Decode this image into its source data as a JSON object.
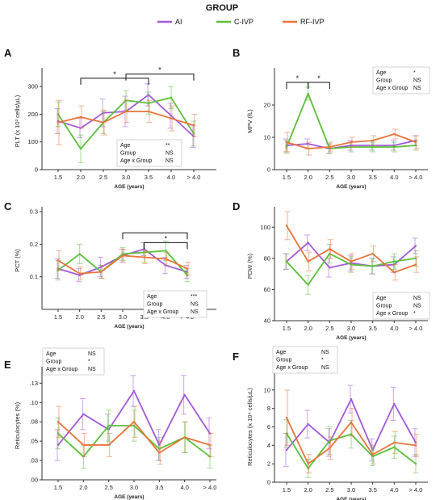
{
  "legend": {
    "title": "GROUP",
    "items": [
      {
        "name": "AI",
        "color": "#a259d9"
      },
      {
        "name": "C-IVP",
        "color": "#5cbf3a"
      },
      {
        "name": "RF-IVP",
        "color": "#e8743b"
      }
    ]
  },
  "chart_data": [
    {
      "panel": "A",
      "type": "line",
      "ylabel": "PLT (x 10³ cells/µL)",
      "xlabel": "AGE (years)",
      "categories": [
        "1.5",
        "2.0",
        "2.5",
        "3.0",
        "3.5",
        "4.0",
        "> 4.0"
      ],
      "ylim": [
        0,
        350
      ],
      "yticks": [
        0,
        100,
        200,
        300
      ],
      "yticklabels": [
        "0",
        "100",
        "200",
        "300"
      ],
      "series": [
        {
          "name": "AI",
          "values": [
            175,
            150,
            205,
            210,
            270,
            195,
            120
          ],
          "errors": [
            45,
            35,
            50,
            55,
            40,
            45,
            40
          ]
        },
        {
          "name": "C-IVP",
          "values": [
            200,
            75,
            170,
            250,
            240,
            260,
            130
          ],
          "errors": [
            45,
            50,
            40,
            35,
            40,
            40,
            45
          ]
        },
        {
          "name": "RF-IVP",
          "values": [
            170,
            190,
            170,
            210,
            210,
            185,
            160
          ],
          "errors": [
            80,
            40,
            45,
            40,
            40,
            45,
            40
          ]
        }
      ],
      "stats": [
        {
          "label": "Age",
          "value": "**"
        },
        {
          "label": "Group",
          "value": "NS"
        },
        {
          "label": "Age x Group",
          "value": "NS"
        }
      ],
      "sig_brackets": [
        {
          "x1": 1,
          "x2": 4,
          "y": 330,
          "label": "*"
        },
        {
          "x1": 3,
          "x2": 6,
          "y": 345,
          "label": "*"
        }
      ]
    },
    {
      "panel": "B",
      "type": "line",
      "ylabel": "MPV (fL)",
      "xlabel": "AGE (years)",
      "categories": [
        "1.5",
        "2.0",
        "2.5",
        "3.0",
        "3.5",
        "4.0",
        "> 4.0"
      ],
      "ylim": [
        0,
        30
      ],
      "yticks": [
        0,
        10,
        20
      ],
      "yticklabels": [
        "0",
        "10",
        "20"
      ],
      "series": [
        {
          "name": "AI",
          "values": [
            7.5,
            8,
            6.5,
            7.5,
            7.5,
            7.5,
            9
          ],
          "errors": [
            2,
            1.5,
            1.5,
            1.5,
            1.5,
            1.5,
            1.5
          ]
        },
        {
          "name": "C-IVP",
          "values": [
            7,
            23.5,
            6.5,
            7,
            7,
            7,
            7.5
          ],
          "errors": [
            2,
            2,
            1.5,
            1.5,
            1.5,
            1.5,
            1.5
          ]
        },
        {
          "name": "RF-IVP",
          "values": [
            8.5,
            6.5,
            7,
            8.5,
            9,
            11,
            8.5
          ],
          "errors": [
            3,
            2,
            1.5,
            1.5,
            1.5,
            1.5,
            2
          ]
        }
      ],
      "stats": [
        {
          "label": "Age",
          "value": "*"
        },
        {
          "label": "Group",
          "value": "NS"
        },
        {
          "label": "Age x Group",
          "value": "NS"
        }
      ],
      "sig_brackets": [
        {
          "x1": 0,
          "x2": 1,
          "y": 27,
          "label": "*"
        },
        {
          "x1": 1,
          "x2": 2,
          "y": 27,
          "label": "*"
        }
      ]
    },
    {
      "panel": "C",
      "type": "line",
      "ylabel": "PCT (%)",
      "xlabel": "AGE (years)",
      "categories": [
        "1.5",
        "2.0",
        "2.5",
        "3.0",
        "3.5",
        "4.0",
        "> 4.0"
      ],
      "ylim": [
        0,
        0.3
      ],
      "yticks": [
        0.1,
        0.2,
        0.3
      ],
      "yticklabels": [
        "0.1",
        "0.2",
        "0.3"
      ],
      "series": [
        {
          "name": "AI",
          "values": [
            0.125,
            0.105,
            0.13,
            0.165,
            0.185,
            0.135,
            0.115
          ],
          "errors": [
            0.03,
            0.02,
            0.03,
            0.02,
            0.02,
            0.025,
            0.02
          ]
        },
        {
          "name": "C-IVP",
          "values": [
            0.12,
            0.17,
            0.115,
            0.17,
            0.175,
            0.18,
            0.105
          ],
          "errors": [
            0.03,
            0.03,
            0.02,
            0.02,
            0.03,
            0.03,
            0.02
          ]
        },
        {
          "name": "RF-IVP",
          "values": [
            0.15,
            0.11,
            0.115,
            0.165,
            0.16,
            0.155,
            0.125
          ],
          "errors": [
            0.03,
            0.02,
            0.02,
            0.02,
            0.02,
            0.02,
            0.02
          ]
        }
      ],
      "stats": [
        {
          "label": "Age",
          "value": "***"
        },
        {
          "label": "Group",
          "value": "NS"
        },
        {
          "label": "Age x Group",
          "value": "NS"
        }
      ],
      "sig_brackets": [
        {
          "x1": 3,
          "x2": 6,
          "y": 0.235,
          "label": ""
        },
        {
          "x1": 4,
          "x2": 6,
          "y": 0.205,
          "label": "*"
        }
      ]
    },
    {
      "panel": "D",
      "type": "line",
      "ylabel": "PDW (%)",
      "xlabel": "AGE (years)",
      "categories": [
        "1.5",
        "2.0",
        "2.5",
        "3.0",
        "3.5",
        "4.0",
        "> 4.0"
      ],
      "ylim": [
        40,
        110
      ],
      "yticks": [
        40,
        60,
        80,
        100
      ],
      "yticklabels": [
        "40",
        "60",
        "80",
        "100"
      ],
      "series": [
        {
          "name": "AI",
          "values": [
            78,
            90,
            74,
            77,
            75,
            76,
            88
          ],
          "errors": [
            5,
            5,
            6,
            5,
            5,
            5,
            5
          ]
        },
        {
          "name": "C-IVP",
          "values": [
            78,
            63,
            83,
            76,
            75,
            78,
            80
          ],
          "errors": [
            5,
            6,
            6,
            5,
            5,
            5,
            5
          ]
        },
        {
          "name": "RF-IVP",
          "values": [
            101,
            78,
            86,
            78,
            83,
            71,
            76
          ],
          "errors": [
            9,
            6,
            6,
            5,
            5,
            5,
            5
          ]
        }
      ],
      "stats": [
        {
          "label": "Age",
          "value": "NS"
        },
        {
          "label": "Group",
          "value": "NS"
        },
        {
          "label": "Age x Group",
          "value": "*"
        }
      ]
    },
    {
      "panel": "E",
      "type": "line",
      "ylabel": "Reticulocytes (%)",
      "xlabel": "AGE (years)",
      "categories": [
        "1.5",
        "2.0",
        "2.5",
        "3.0",
        "3.5",
        "4.0",
        "> 4.0"
      ],
      "ylim": [
        0,
        0.14
      ],
      "yticks": [
        0,
        0.025,
        0.05,
        0.075,
        0.1,
        0.125
      ],
      "yticklabels": [
        ".00",
        ".03",
        ".05",
        ".08",
        ".10",
        ".13"
      ],
      "series": [
        {
          "name": "AI",
          "values": [
            0.045,
            0.085,
            0.065,
            0.115,
            0.045,
            0.11,
            0.06
          ],
          "errors": [
            0.02,
            0.02,
            0.02,
            0.02,
            0.02,
            0.025,
            0.02
          ]
        },
        {
          "name": "C-IVP",
          "values": [
            0.06,
            0.03,
            0.07,
            0.07,
            0.04,
            0.055,
            0.03
          ],
          "errors": [
            0.02,
            0.015,
            0.02,
            0.02,
            0.015,
            0.02,
            0.015
          ]
        },
        {
          "name": "RF-IVP",
          "values": [
            0.075,
            0.045,
            0.045,
            0.075,
            0.035,
            0.055,
            0.045
          ],
          "errors": [
            0.02,
            0.015,
            0.015,
            0.02,
            0.015,
            0.02,
            0.015
          ]
        }
      ],
      "stats": [
        {
          "label": "Age",
          "value": "NS"
        },
        {
          "label": "Group",
          "value": "*"
        },
        {
          "label": "Age x Group",
          "value": "NS"
        }
      ]
    },
    {
      "panel": "F",
      "type": "line",
      "ylabel": "Reticulocytes (x 10⁴ cells/µL)",
      "xlabel": "AGE (years)",
      "categories": [
        "1.5",
        "2.0",
        "2.5",
        "3.0",
        "3.5",
        "4.0",
        "> 4.0"
      ],
      "ylim": [
        0,
        12
      ],
      "yticks": [
        0,
        2,
        4,
        6,
        8,
        10
      ],
      "yticklabels": [
        "0",
        "2",
        "4",
        "6",
        "8",
        "10"
      ],
      "series": [
        {
          "name": "AI",
          "values": [
            3.5,
            6.3,
            4.3,
            9.0,
            3.5,
            8.5,
            4.3
          ],
          "errors": [
            1.8,
            1.5,
            1.5,
            1.5,
            1.2,
            1.8,
            1.5
          ]
        },
        {
          "name": "C-IVP",
          "values": [
            5.3,
            1.5,
            4.5,
            5.2,
            2.8,
            3.8,
            2.0
          ],
          "errors": [
            1.5,
            1.0,
            1.5,
            1.5,
            1.0,
            1.2,
            1.0
          ]
        },
        {
          "name": "RF-IVP",
          "values": [
            7.0,
            2.0,
            3.7,
            6.5,
            3.0,
            4.3,
            4.0
          ],
          "errors": [
            3.0,
            1.0,
            1.2,
            1.5,
            1.0,
            1.2,
            1.2
          ]
        }
      ],
      "stats": [
        {
          "label": "Age",
          "value": "NS"
        },
        {
          "label": "Group",
          "value": "*"
        },
        {
          "label": "Age x Group",
          "value": "NS"
        }
      ]
    }
  ]
}
